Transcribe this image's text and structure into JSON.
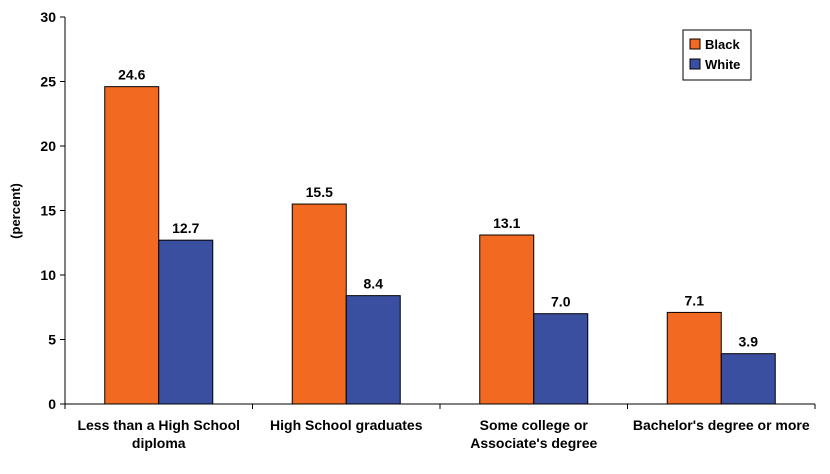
{
  "chart_data": {
    "type": "bar",
    "title": "",
    "xlabel": "",
    "ylabel": "(percent)",
    "ylim": [
      0,
      30
    ],
    "yticks": [
      0,
      5,
      10,
      15,
      20,
      25,
      30
    ],
    "grid": false,
    "legend_position": "top-right",
    "categories": [
      [
        "Less than a High School",
        "diploma"
      ],
      [
        "High School graduates"
      ],
      [
        "Some college or",
        "Associate's degree"
      ],
      [
        "Bachelor's degree or more"
      ]
    ],
    "series": [
      {
        "name": "Black",
        "color": "#F26A21",
        "values": [
          24.6,
          15.5,
          13.1,
          7.1
        ],
        "labels": [
          "24.6",
          "15.5",
          "13.1",
          "7.1"
        ]
      },
      {
        "name": "White",
        "color": "#3A4FA0",
        "values": [
          12.7,
          8.4,
          7.0,
          3.9
        ],
        "labels": [
          "12.7",
          "8.4",
          "7.0",
          "3.9"
        ]
      }
    ]
  }
}
